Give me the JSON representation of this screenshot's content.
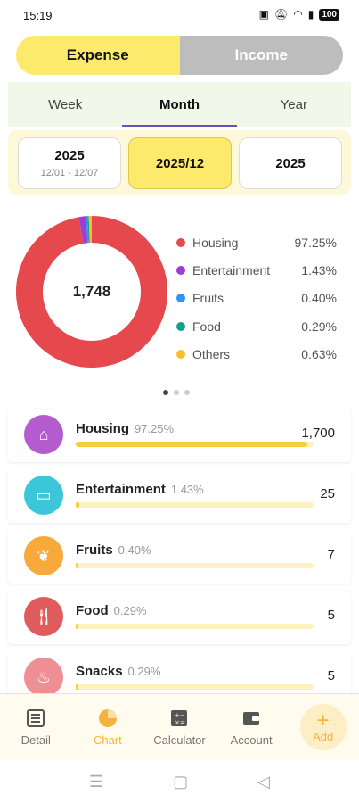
{
  "status": {
    "time": "15:19",
    "battery": "100"
  },
  "type_toggle": {
    "expense": "Expense",
    "income": "Income"
  },
  "period_tabs": [
    "Week",
    "Month",
    "Year"
  ],
  "period_boxes": [
    {
      "main": "2025",
      "sub": "12/01 - 12/07"
    },
    {
      "main": "2025/12",
      "sub": ""
    },
    {
      "main": "2025",
      "sub": ""
    }
  ],
  "chart_data": {
    "type": "pie",
    "total_label": "1,748",
    "categories": [
      "Housing",
      "Entertainment",
      "Fruits",
      "Food",
      "Others"
    ],
    "values": [
      97.25,
      1.43,
      0.4,
      0.29,
      0.63
    ],
    "percent_labels": [
      "97.25%",
      "1.43%",
      "0.40%",
      "0.29%",
      "0.63%"
    ],
    "colors": [
      "#e5484d",
      "#9c3fd1",
      "#2f95ec",
      "#13a089",
      "#f5c02c"
    ]
  },
  "list": [
    {
      "name": "Housing",
      "pct": "97.25%",
      "amount": "1,700",
      "fraction": 0.9725,
      "color": "#b45bd0",
      "icon": "house-icon"
    },
    {
      "name": "Entertainment",
      "pct": "1.43%",
      "amount": "25",
      "fraction": 0.0143,
      "color": "#3bc7d9",
      "icon": "gamepad-icon"
    },
    {
      "name": "Fruits",
      "pct": "0.40%",
      "amount": "7",
      "fraction": 0.004,
      "color": "#f7a93a",
      "icon": "fruit-icon"
    },
    {
      "name": "Food",
      "pct": "0.29%",
      "amount": "5",
      "fraction": 0.0029,
      "color": "#e05b5b",
      "icon": "cutlery-icon"
    },
    {
      "name": "Snacks",
      "pct": "0.29%",
      "amount": "5",
      "fraction": 0.0029,
      "color": "#f08f93",
      "icon": "cake-icon"
    }
  ],
  "nav": [
    {
      "label": "Detail",
      "icon": "list-icon"
    },
    {
      "label": "Chart",
      "icon": "pie-chart-icon"
    },
    {
      "label": "Calculator",
      "icon": "calculator-icon"
    },
    {
      "label": "Account",
      "icon": "wallet-icon"
    },
    {
      "label": "Add",
      "icon": "plus-icon"
    }
  ]
}
